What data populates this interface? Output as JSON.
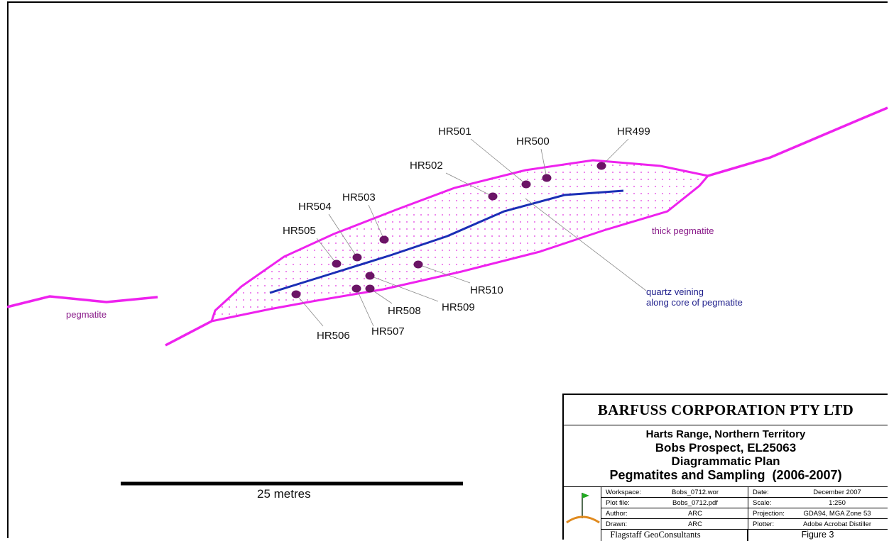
{
  "map": {
    "sample_labels": [
      "HR499",
      "HR500",
      "HR501",
      "HR502",
      "HR503",
      "HR504",
      "HR505",
      "HR506",
      "HR507",
      "HR508",
      "HR509",
      "HR510"
    ],
    "unit_labels": {
      "pegmatite": "pegmatite",
      "thick_pegmatite": "thick pegmatite",
      "quartz_line1": "quartz veining",
      "quartz_line2": "along core of pegmatite"
    },
    "scale_bar_label": "25 metres",
    "colors": {
      "pegmatite": "#ee22ee",
      "quartz_vein": "#1a2fb5",
      "sample_point": "#6b1466",
      "dot_fill": "#e033e0"
    }
  },
  "title_block": {
    "company": "BARFUSS CORPORATION PTY LTD",
    "location": "Harts Range, Northern Territory",
    "prospect": "Bobs Prospect, EL25063",
    "plan_type": "Diagrammatic Plan",
    "subject": "Pegmatites and Sampling  (2006-2007)",
    "left_fields": [
      {
        "key": "Workspace:",
        "value": "Bobs_0712.wor"
      },
      {
        "key": "Plot file:",
        "value": "Bobs_0712.pdf"
      },
      {
        "key": "Author:",
        "value": "ARC"
      },
      {
        "key": "Drawn:",
        "value": "ARC"
      }
    ],
    "right_fields": [
      {
        "key": "Date:",
        "value": "December 2007"
      },
      {
        "key": "Scale:",
        "value": "1:250"
      },
      {
        "key": "Projection:",
        "value": "GDA94, MGA Zone 53"
      },
      {
        "key": "Plotter:",
        "value": "Adobe Acrobat Distiller"
      }
    ],
    "organization": "Flagstaff GeoConsultants",
    "figure": "Figure 3"
  }
}
